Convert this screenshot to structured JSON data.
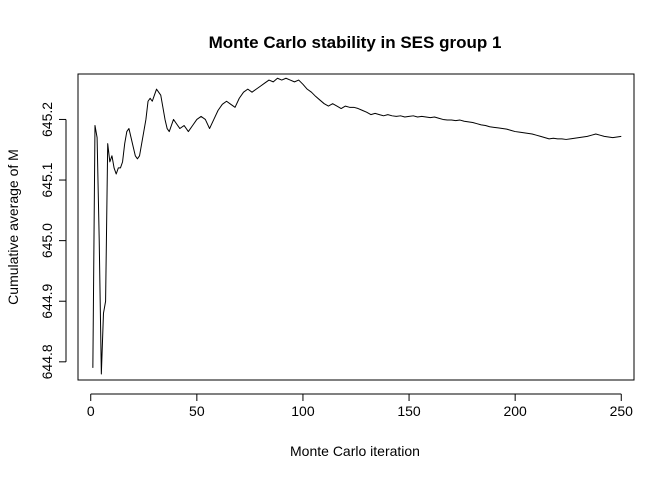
{
  "chart_data": {
    "type": "line",
    "title": "Monte Carlo stability in SES group 1",
    "xlabel": "Monte Carlo iteration",
    "ylabel": "Cumulative average of M",
    "xlim": [
      -6,
      256
    ],
    "ylim": [
      644.77,
      645.275
    ],
    "xticks": [
      0,
      50,
      100,
      150,
      200,
      250
    ],
    "yticks": [
      644.8,
      644.9,
      645.0,
      645.1,
      645.2
    ],
    "ytick_labels": [
      "644.8",
      "644.9",
      "645.0",
      "645.1",
      "645.2"
    ],
    "grid": false,
    "series": [
      {
        "color": "#000000",
        "points": [
          [
            1,
            644.79
          ],
          [
            2,
            645.19
          ],
          [
            3,
            645.17
          ],
          [
            4,
            645.0
          ],
          [
            5,
            644.78
          ],
          [
            6,
            644.88
          ],
          [
            7,
            644.9
          ],
          [
            8,
            645.16
          ],
          [
            9,
            645.13
          ],
          [
            10,
            645.14
          ],
          [
            11,
            645.12
          ],
          [
            12,
            645.11
          ],
          [
            13,
            645.12
          ],
          [
            14,
            645.12
          ],
          [
            15,
            645.13
          ],
          [
            16,
            645.16
          ],
          [
            17,
            645.18
          ],
          [
            18,
            645.185
          ],
          [
            19,
            645.17
          ],
          [
            20,
            645.155
          ],
          [
            21,
            645.14
          ],
          [
            22,
            645.135
          ],
          [
            23,
            645.14
          ],
          [
            24,
            645.16
          ],
          [
            25,
            645.18
          ],
          [
            26,
            645.2
          ],
          [
            27,
            645.23
          ],
          [
            28,
            645.235
          ],
          [
            29,
            645.23
          ],
          [
            30,
            645.24
          ],
          [
            31,
            645.25
          ],
          [
            32,
            645.245
          ],
          [
            33,
            645.24
          ],
          [
            34,
            645.22
          ],
          [
            35,
            645.2
          ],
          [
            36,
            645.185
          ],
          [
            37,
            645.18
          ],
          [
            38,
            645.19
          ],
          [
            39,
            645.2
          ],
          [
            40,
            645.195
          ],
          [
            42,
            645.185
          ],
          [
            44,
            645.19
          ],
          [
            46,
            645.18
          ],
          [
            48,
            645.19
          ],
          [
            50,
            645.2
          ],
          [
            52,
            645.205
          ],
          [
            54,
            645.2
          ],
          [
            56,
            645.185
          ],
          [
            58,
            645.2
          ],
          [
            60,
            645.215
          ],
          [
            62,
            645.225
          ],
          [
            64,
            645.23
          ],
          [
            66,
            645.225
          ],
          [
            68,
            645.22
          ],
          [
            70,
            645.235
          ],
          [
            72,
            645.245
          ],
          [
            74,
            645.25
          ],
          [
            76,
            645.245
          ],
          [
            78,
            645.25
          ],
          [
            80,
            645.255
          ],
          [
            82,
            645.26
          ],
          [
            84,
            645.265
          ],
          [
            86,
            645.262
          ],
          [
            88,
            645.268
          ],
          [
            90,
            645.265
          ],
          [
            92,
            645.268
          ],
          [
            94,
            645.265
          ],
          [
            96,
            645.262
          ],
          [
            98,
            645.265
          ],
          [
            100,
            645.258
          ],
          [
            102,
            645.25
          ],
          [
            104,
            645.245
          ],
          [
            106,
            645.238
          ],
          [
            108,
            645.232
          ],
          [
            110,
            645.226
          ],
          [
            112,
            645.222
          ],
          [
            114,
            645.226
          ],
          [
            116,
            645.222
          ],
          [
            118,
            645.218
          ],
          [
            120,
            645.222
          ],
          [
            122,
            645.22
          ],
          [
            124,
            645.22
          ],
          [
            126,
            645.218
          ],
          [
            128,
            645.215
          ],
          [
            130,
            645.212
          ],
          [
            132,
            645.208
          ],
          [
            134,
            645.21
          ],
          [
            136,
            645.208
          ],
          [
            138,
            645.206
          ],
          [
            140,
            645.208
          ],
          [
            142,
            645.206
          ],
          [
            144,
            645.205
          ],
          [
            146,
            645.206
          ],
          [
            148,
            645.204
          ],
          [
            150,
            645.205
          ],
          [
            152,
            645.206
          ],
          [
            154,
            645.204
          ],
          [
            156,
            645.205
          ],
          [
            158,
            645.204
          ],
          [
            160,
            645.203
          ],
          [
            162,
            645.204
          ],
          [
            164,
            645.202
          ],
          [
            166,
            645.2
          ],
          [
            168,
            645.199
          ],
          [
            170,
            645.199
          ],
          [
            172,
            645.198
          ],
          [
            174,
            645.199
          ],
          [
            176,
            645.197
          ],
          [
            178,
            645.196
          ],
          [
            180,
            645.195
          ],
          [
            182,
            645.193
          ],
          [
            184,
            645.191
          ],
          [
            186,
            645.19
          ],
          [
            188,
            645.188
          ],
          [
            190,
            645.187
          ],
          [
            192,
            645.186
          ],
          [
            194,
            645.185
          ],
          [
            196,
            645.184
          ],
          [
            198,
            645.182
          ],
          [
            200,
            645.18
          ],
          [
            202,
            645.179
          ],
          [
            204,
            645.178
          ],
          [
            206,
            645.177
          ],
          [
            208,
            645.176
          ],
          [
            210,
            645.174
          ],
          [
            212,
            645.172
          ],
          [
            214,
            645.17
          ],
          [
            216,
            645.168
          ],
          [
            218,
            645.169
          ],
          [
            220,
            645.168
          ],
          [
            222,
            645.168
          ],
          [
            224,
            645.167
          ],
          [
            226,
            645.168
          ],
          [
            228,
            645.169
          ],
          [
            230,
            645.17
          ],
          [
            232,
            645.171
          ],
          [
            234,
            645.172
          ],
          [
            236,
            645.174
          ],
          [
            238,
            645.176
          ],
          [
            240,
            645.174
          ],
          [
            242,
            645.172
          ],
          [
            244,
            645.171
          ],
          [
            246,
            645.17
          ],
          [
            248,
            645.171
          ],
          [
            250,
            645.172
          ]
        ]
      }
    ]
  }
}
